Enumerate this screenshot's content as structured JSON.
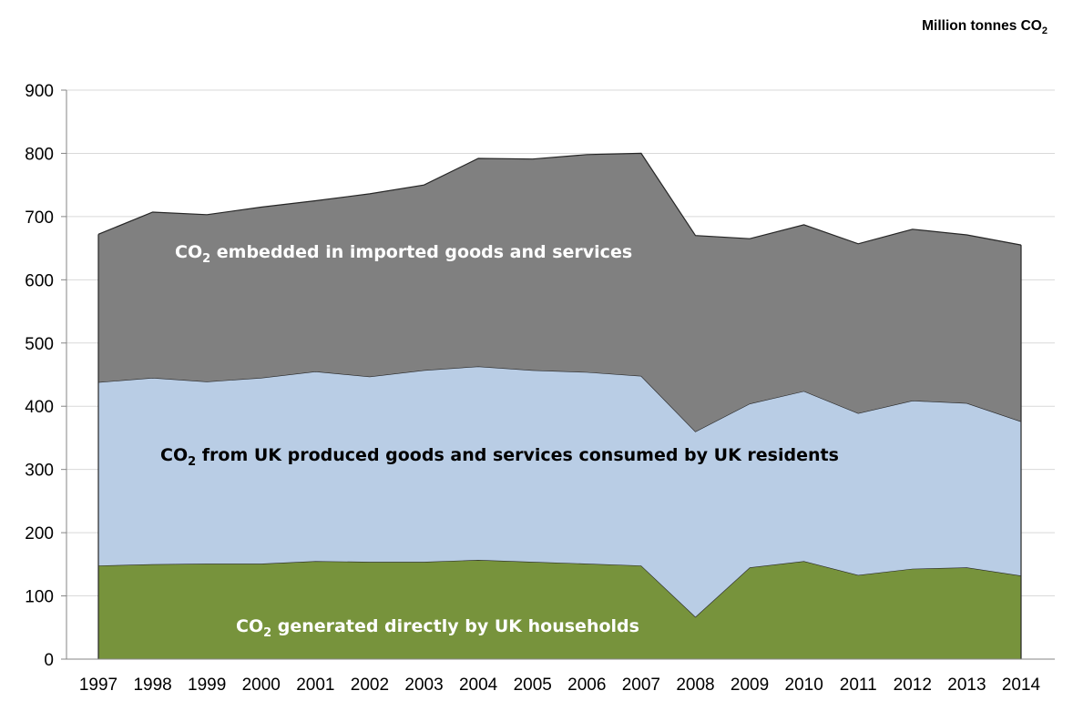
{
  "chart_data": {
    "type": "area",
    "stacked": true,
    "unit_label": "Million tonnes CO",
    "unit_label_sub": "2",
    "x": [
      "1997",
      "1998",
      "1999",
      "2000",
      "2001",
      "2002",
      "2003",
      "2004",
      "2005",
      "2006",
      "2007",
      "2008",
      "2009",
      "2010",
      "2011",
      "2012",
      "2013",
      "2014"
    ],
    "ylim": [
      0,
      900
    ],
    "yticks": [
      0,
      100,
      200,
      300,
      400,
      500,
      600,
      700,
      800,
      900
    ],
    "grid": true,
    "series": [
      {
        "name": "generated directly by UK households",
        "color": "#77933c",
        "label_color": "#ffffff",
        "values": [
          148,
          150,
          151,
          151,
          155,
          154,
          154,
          157,
          154,
          151,
          148,
          67,
          145,
          155,
          133,
          143,
          145,
          132
        ]
      },
      {
        "name": "from UK produced goods and services consumed by UK residents",
        "color": "#b9cde5",
        "label_color": "#000000",
        "values": [
          290,
          295,
          288,
          294,
          300,
          293,
          303,
          306,
          303,
          303,
          300,
          293,
          259,
          269,
          256,
          266,
          260,
          244
        ]
      },
      {
        "name": "embedded in imported goods and services",
        "color": "#808080",
        "label_color": "#ffffff",
        "values": [
          234,
          262,
          264,
          270,
          270,
          289,
          293,
          329,
          334,
          344,
          352,
          310,
          261,
          263,
          268,
          271,
          266,
          279
        ]
      }
    ],
    "annotations": [
      {
        "prefix": "CO",
        "sub": "2",
        "text": " embedded in imported goods and services"
      },
      {
        "prefix": "CO",
        "sub": "2",
        "text": " from UK produced goods and services consumed by UK residents"
      },
      {
        "prefix": "CO",
        "sub": "2",
        "text": " generated directly by UK households"
      }
    ]
  }
}
